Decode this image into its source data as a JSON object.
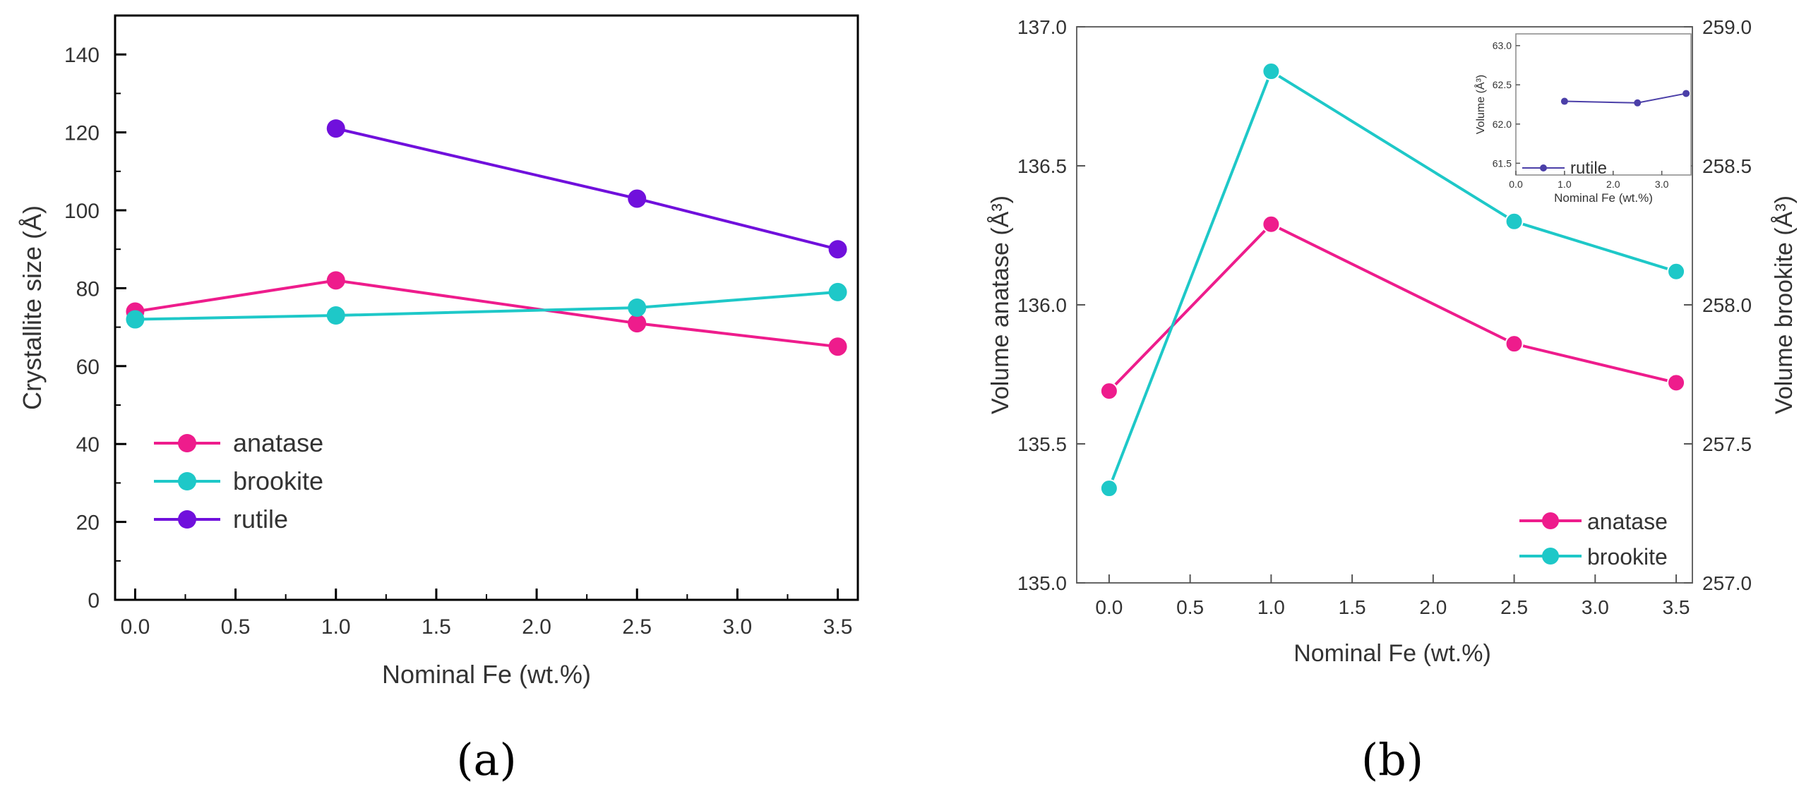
{
  "colors": {
    "anatase": "#ee1c8c",
    "brookite": "#1ec8c8",
    "rutile": "#7010dc",
    "inset": "#4b3fa8",
    "axis": "#000000"
  },
  "chart_data": [
    {
      "type": "line",
      "panel_label": "(a)",
      "xlabel": "Nominal Fe (wt.%)",
      "ylabel": "Crystallite size (Å)",
      "xlim": [
        -0.1,
        3.6
      ],
      "ylim": [
        0,
        150
      ],
      "xticks": [
        "0.0",
        "0.5",
        "1.0",
        "1.5",
        "2.0",
        "2.5",
        "3.0",
        "3.5"
      ],
      "yticks": [
        "0",
        "20",
        "40",
        "60",
        "80",
        "100",
        "120",
        "140"
      ],
      "legend_position": "bottom-left",
      "series": [
        {
          "name": "anatase",
          "x": [
            0,
            1,
            2.5,
            3.5
          ],
          "y": [
            74,
            82,
            71,
            65
          ]
        },
        {
          "name": "brookite",
          "x": [
            0,
            1,
            2.5,
            3.5
          ],
          "y": [
            72,
            73,
            75,
            79
          ]
        },
        {
          "name": "rutile",
          "x": [
            1,
            2.5,
            3.5
          ],
          "y": [
            121,
            103,
            90
          ]
        }
      ]
    },
    {
      "type": "line",
      "panel_label": "(b)",
      "xlabel": "Nominal Fe (wt.%)",
      "ylabel_left": "Volume anatase (Å³)",
      "ylabel_right": "Volume brookite (Å³)",
      "xlim": [
        -0.2,
        3.6
      ],
      "ylim_left": [
        135.0,
        137.0
      ],
      "ylim_right": [
        257.0,
        259.0
      ],
      "xticks": [
        "0.0",
        "0.5",
        "1.0",
        "1.5",
        "2.0",
        "2.5",
        "3.0",
        "3.5"
      ],
      "yticks_left": [
        "135.0",
        "135.5",
        "136.0",
        "136.5",
        "137.0"
      ],
      "yticks_right": [
        "257.0",
        "257.5",
        "258.0",
        "258.5",
        "259.0"
      ],
      "legend_position": "bottom-right",
      "series": [
        {
          "name": "anatase",
          "axis": "left",
          "x": [
            0,
            1,
            2.5,
            3.5
          ],
          "y": [
            135.69,
            136.29,
            135.86,
            135.72
          ]
        },
        {
          "name": "brookite",
          "axis": "right",
          "x": [
            0,
            1,
            2.5,
            3.5
          ],
          "y": [
            257.34,
            258.84,
            258.3,
            258.12
          ]
        }
      ],
      "inset": {
        "xlabel": "Nominal Fe (wt.%)",
        "ylabel": "Volume (Å³)",
        "xlim": [
          0,
          3.6
        ],
        "ylim": [
          61.35,
          63.15
        ],
        "xticks": [
          "0.0",
          "1.0",
          "2.0",
          "3.0"
        ],
        "yticks": [
          "61.5",
          "62.0",
          "62.5",
          "63.0"
        ],
        "series": [
          {
            "name": "rutile",
            "x": [
              1,
              2.5,
              3.5
            ],
            "y": [
              62.29,
              62.27,
              62.39
            ]
          }
        ]
      }
    }
  ]
}
